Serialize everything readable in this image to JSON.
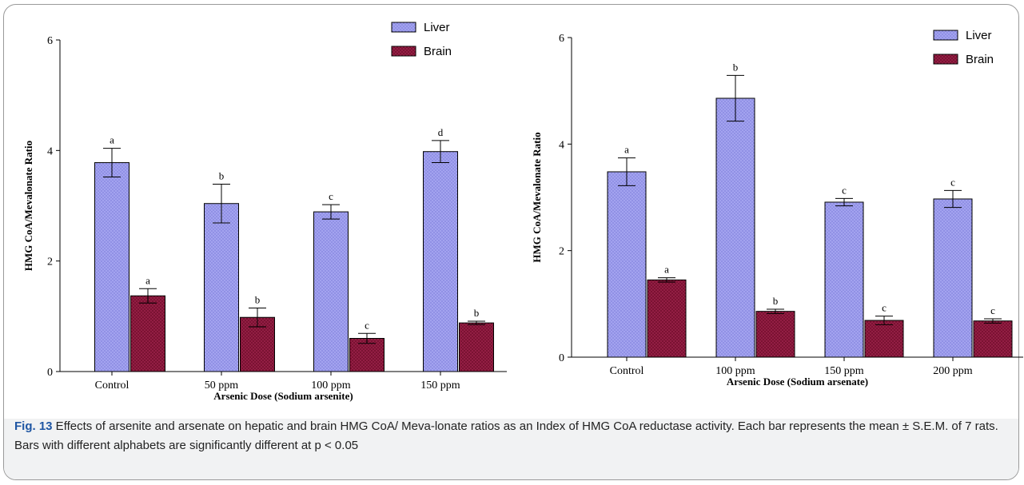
{
  "chart_data": [
    {
      "type": "bar",
      "categories": [
        "Control",
        "50 ppm",
        "100 ppm",
        "150 ppm"
      ],
      "series": [
        {
          "name": "Liver",
          "values": [
            3.78,
            3.04,
            2.89,
            3.98
          ],
          "errors": [
            0.26,
            0.35,
            0.13,
            0.2
          ],
          "labels": [
            "a",
            "b",
            "c",
            "d"
          ]
        },
        {
          "name": "Brain",
          "values": [
            1.37,
            0.98,
            0.6,
            0.88
          ],
          "errors": [
            0.13,
            0.17,
            0.09,
            0.03
          ],
          "labels": [
            "a",
            "b",
            "c",
            "b"
          ]
        }
      ],
      "ylabel": "HMG CoA/Mevalonate Ratio",
      "xlabel": "Arsenic Dose (Sodium arsenite)",
      "ylim": [
        0,
        6
      ],
      "yticks": [
        0,
        2,
        4,
        6
      ],
      "legend": "top-right"
    },
    {
      "type": "bar",
      "categories": [
        "Control",
        "100 ppm",
        "150 ppm",
        "200 ppm"
      ],
      "series": [
        {
          "name": "Liver",
          "values": [
            3.48,
            4.86,
            2.91,
            2.97
          ],
          "errors": [
            0.26,
            0.43,
            0.07,
            0.16
          ],
          "labels": [
            "a",
            "b",
            "c",
            "c"
          ]
        },
        {
          "name": "Brain",
          "values": [
            1.45,
            0.86,
            0.69,
            0.68
          ],
          "errors": [
            0.04,
            0.04,
            0.08,
            0.04
          ],
          "labels": [
            "a",
            "b",
            "c",
            "c"
          ]
        }
      ],
      "ylabel": "HMG CoA/Mevalonate Ratio",
      "xlabel": "Arsenic Dose (Sodium arsenate)",
      "ylim": [
        0,
        6
      ],
      "yticks": [
        0,
        2,
        4,
        6
      ],
      "legend": "top-right"
    }
  ],
  "colors": {
    "liver_fill": "#a3a3ef",
    "liver_dot": "#4a4abf",
    "brain_fill": "#7a1232",
    "brain_dot": "#d23c70"
  },
  "caption": {
    "fig_label": "Fig. 13",
    "text": " Effects of arsenite and arsenate on hepatic and brain HMG CoA/ Meva-lonate ratios as an Index of HMG CoA reductase activity. Each bar represents the mean ± S.E.M. of 7 rats. Bars with different alphabets are significantly different at p < 0.05"
  }
}
